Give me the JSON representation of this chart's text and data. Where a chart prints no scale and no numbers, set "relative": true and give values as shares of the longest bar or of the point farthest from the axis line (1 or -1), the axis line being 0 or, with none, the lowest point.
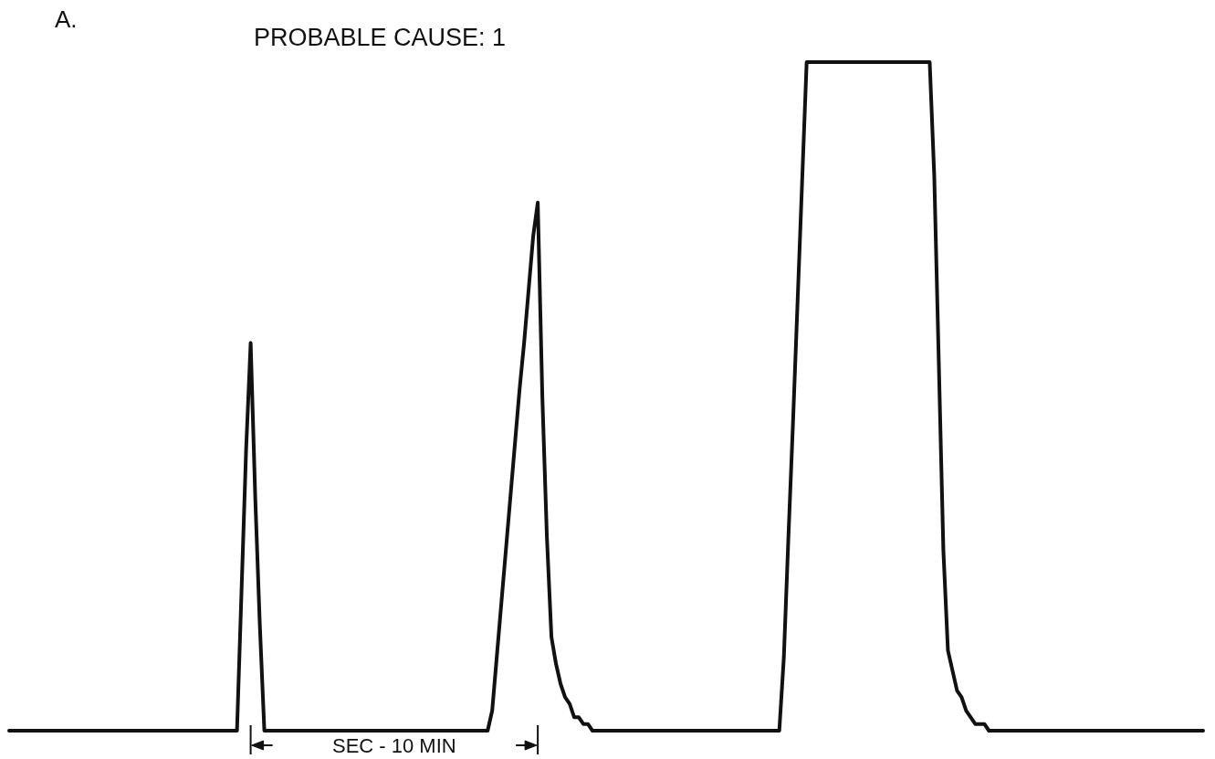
{
  "chart_data": {
    "type": "line",
    "relative": true,
    "title": "PROBABLE CAUSE: 1",
    "annotations": [
      "A.",
      "SEC - 10 MIN"
    ],
    "line_style": "solid",
    "categories": [
      null,
      null,
      null,
      null,
      null,
      null,
      null,
      null,
      null,
      null,
      null,
      null,
      null,
      null,
      null,
      null,
      null,
      null,
      null,
      null,
      null,
      null,
      null,
      null,
      null,
      null,
      null,
      null,
      null,
      null,
      null,
      null,
      null,
      null,
      null,
      null,
      null,
      null,
      null,
      null,
      null,
      null,
      null,
      null,
      null,
      null,
      null,
      null,
      null,
      null,
      null,
      null,
      null,
      null,
      null,
      null,
      null,
      null,
      null,
      null,
      null,
      null,
      null,
      null,
      null,
      null,
      null,
      null,
      null,
      null,
      null,
      null,
      null,
      null,
      null,
      null,
      null,
      null,
      null,
      null,
      null,
      null,
      null,
      null,
      null,
      null,
      null,
      null,
      null,
      null,
      null,
      null,
      null,
      null,
      null,
      null,
      null,
      null,
      null,
      null,
      null,
      null,
      null,
      null,
      null,
      null,
      null,
      null,
      null,
      null,
      null,
      null,
      null,
      null,
      null,
      null,
      null,
      null,
      null,
      null,
      null,
      null,
      null,
      null,
      null,
      null,
      null,
      null,
      null,
      null,
      null,
      null,
      null,
      null,
      null,
      null,
      null,
      null,
      null,
      null,
      null,
      null,
      null,
      null,
      null,
      null,
      null,
      null,
      null,
      null,
      null,
      null,
      null,
      null,
      null,
      null,
      null,
      null,
      null,
      null,
      null,
      null,
      null,
      null,
      null,
      null,
      null,
      null,
      null,
      null,
      null,
      null,
      null,
      null,
      null,
      null,
      null,
      null,
      null,
      null,
      null,
      null,
      null,
      null,
      null,
      null,
      null,
      null,
      null,
      null,
      null,
      null,
      null,
      null,
      null,
      null,
      null,
      null,
      null,
      null,
      null,
      null,
      null,
      null,
      null,
      null,
      null,
      null,
      null,
      null,
      null,
      null,
      null,
      null,
      null,
      null,
      null,
      null,
      null,
      null,
      null,
      null,
      null,
      null,
      null,
      null,
      null,
      null,
      null,
      null,
      null,
      null,
      null,
      null,
      null,
      null,
      null,
      null,
      null,
      null,
      null,
      null,
      null,
      null,
      null,
      null,
      null,
      null,
      null,
      null,
      null,
      null,
      null,
      null,
      null,
      null,
      null,
      null,
      null,
      null,
      null,
      null,
      null
    ],
    "series": [
      {
        "color": "#111111",
        "values": [
          0,
          0,
          0,
          0,
          0,
          0,
          0,
          0,
          0,
          0,
          0,
          0,
          0,
          0,
          0,
          0,
          0,
          0,
          0,
          0,
          0,
          0,
          0,
          0,
          0,
          0,
          0,
          0,
          0,
          0,
          0,
          0,
          0,
          0,
          0,
          0,
          0,
          0,
          0,
          0,
          0,
          0,
          0,
          0,
          0,
          0,
          0,
          0,
          0,
          0,
          0,
          0.21,
          0.42,
          0.58,
          0.35,
          0.16,
          0,
          0,
          0,
          0,
          0,
          0,
          0,
          0,
          0,
          0,
          0,
          0,
          0,
          0,
          0,
          0,
          0,
          0,
          0,
          0,
          0,
          0,
          0,
          0,
          0,
          0,
          0,
          0,
          0,
          0,
          0,
          0,
          0,
          0,
          0,
          0,
          0,
          0,
          0,
          0,
          0,
          0,
          0,
          0,
          0,
          0,
          0,
          0,
          0,
          0,
          0.03,
          0.11,
          0.19,
          0.27,
          0.35,
          0.43,
          0.51,
          0.58,
          0.66,
          0.74,
          0.79,
          0.5,
          0.29,
          0.14,
          0.1,
          0.07,
          0.05,
          0.04,
          0.02,
          0.02,
          0.01,
          0.01,
          0,
          0,
          0,
          0,
          0,
          0,
          0,
          0,
          0,
          0,
          0,
          0,
          0,
          0,
          0,
          0,
          0,
          0,
          0,
          0,
          0,
          0,
          0,
          0,
          0,
          0,
          0,
          0,
          0,
          0,
          0,
          0,
          0,
          0,
          0,
          0,
          0,
          0,
          0,
          0,
          0,
          0,
          0.11,
          0.29,
          0.46,
          0.64,
          0.82,
          1,
          1,
          1,
          1,
          1,
          1,
          1,
          1,
          1,
          1,
          1,
          1,
          1,
          1,
          1,
          1,
          1,
          1,
          1,
          1,
          1,
          1,
          1,
          1,
          1,
          1,
          1,
          1,
          0.83,
          0.55,
          0.27,
          0.12,
          0.09,
          0.06,
          0.05,
          0.03,
          0.02,
          0.01,
          0.01,
          0.01,
          0,
          0,
          0,
          0,
          0,
          0,
          0,
          0,
          0,
          0,
          0,
          0,
          0,
          0,
          0,
          0,
          0,
          0,
          0,
          0,
          0,
          0,
          0,
          0,
          0,
          0,
          0,
          0,
          0,
          0,
          0,
          0,
          0,
          0,
          0,
          0,
          0,
          0,
          0,
          0,
          0,
          0,
          0,
          0,
          0,
          0,
          0,
          0
        ]
      }
    ]
  }
}
